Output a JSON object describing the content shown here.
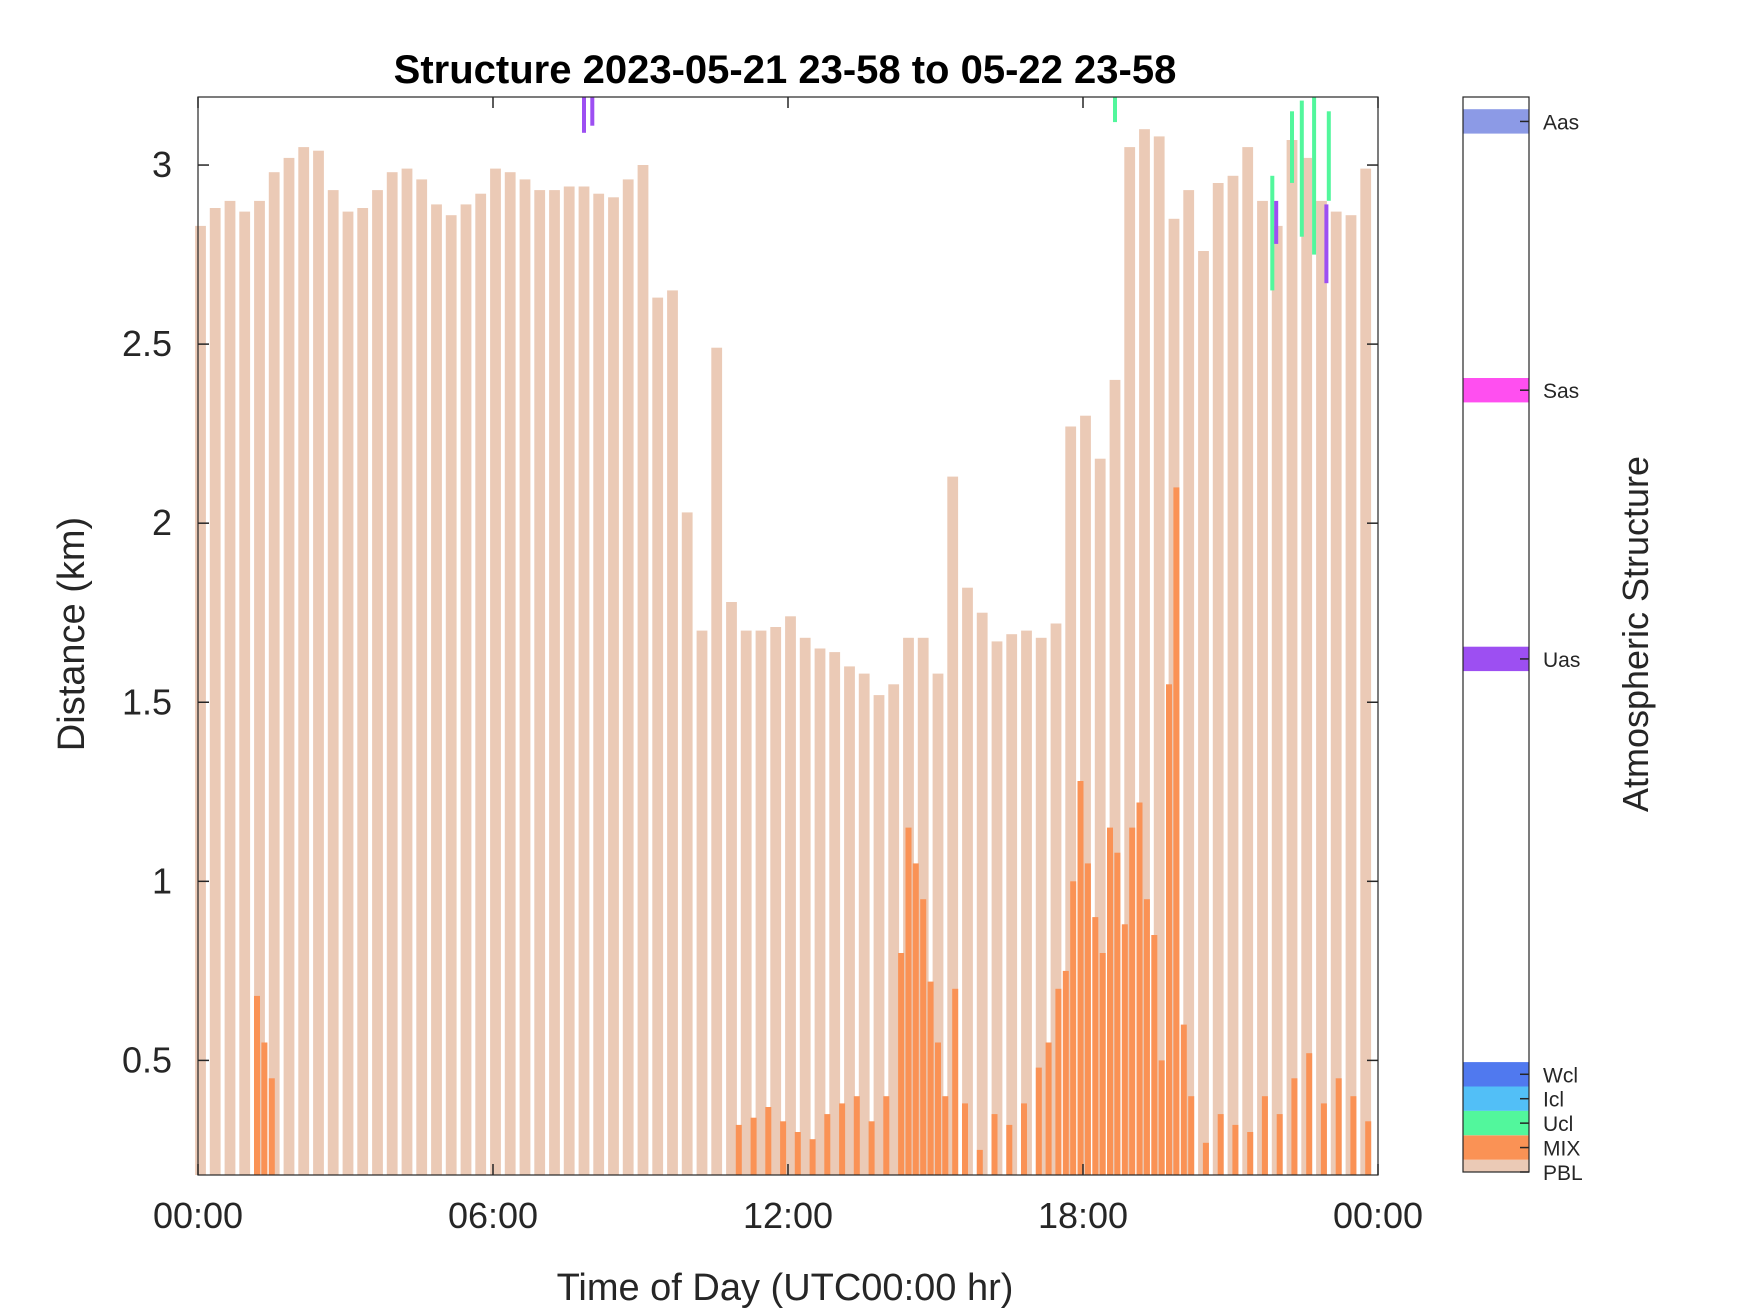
{
  "chart_data": {
    "type": "bar",
    "title": "Structure 2023-05-21 23-58 to 05-22 23-58",
    "xlabel": "Time of Day (UTC00:00 hr)",
    "ylabel": "Distance (km)",
    "xlim": [
      0,
      24
    ],
    "ylim": [
      0.18,
      3.19
    ],
    "x_ticks": [
      0,
      6,
      12,
      18,
      24
    ],
    "x_tick_labels": [
      "00:00",
      "06:00",
      "12:00",
      "18:00",
      "00:00"
    ],
    "y_ticks": [
      0.5,
      1,
      1.5,
      2,
      2.5,
      3
    ],
    "y_tick_labels": [
      "0.5",
      "1",
      "1.5",
      "2",
      "2.5",
      "3"
    ],
    "grid": false,
    "colorbar": {
      "title": "Atmospheric Structure",
      "classes": [
        {
          "label": "Aas",
          "color": "#8c9ae6"
        },
        {
          "label": "Sas",
          "color": "#ff4ff0"
        },
        {
          "label": "Uas",
          "color": "#9d4ff2"
        },
        {
          "label": "Wcl",
          "color": "#5079ef"
        },
        {
          "label": "Icl",
          "color": "#52bff7"
        },
        {
          "label": "Ucl",
          "color": "#52f79c"
        },
        {
          "label": "MIX",
          "color": "#fa9255"
        },
        {
          "label": "PBL",
          "color": "#ebcab6"
        }
      ]
    },
    "series": [
      {
        "name": "PBL",
        "color": "#ebcab6",
        "x": [
          0.05,
          0.35,
          0.65,
          0.95,
          1.25,
          1.55,
          1.85,
          2.15,
          2.45,
          2.75,
          3.05,
          3.35,
          3.65,
          3.95,
          4.25,
          4.55,
          4.85,
          5.15,
          5.45,
          5.75,
          6.05,
          6.35,
          6.65,
          6.95,
          7.25,
          7.55,
          7.85,
          8.15,
          8.45,
          8.75,
          9.05,
          9.35,
          9.65,
          9.95,
          10.25,
          10.55,
          10.85,
          11.15,
          11.45,
          11.75,
          12.05,
          12.35,
          12.65,
          12.95,
          13.25,
          13.55,
          13.85,
          14.15,
          14.45,
          14.75,
          15.05,
          15.35,
          15.65,
          15.95,
          16.25,
          16.55,
          16.85,
          17.15,
          17.45,
          17.75,
          18.05,
          18.35,
          18.65,
          18.95,
          19.25,
          19.55,
          19.85,
          20.15,
          20.45,
          20.75,
          21.05,
          21.35,
          21.65,
          21.95,
          22.25,
          22.55,
          22.85,
          23.15,
          23.45,
          23.75
        ],
        "values": [
          2.83,
          2.88,
          2.9,
          2.87,
          2.9,
          2.98,
          3.02,
          3.05,
          3.04,
          2.93,
          2.87,
          2.88,
          2.93,
          2.98,
          2.99,
          2.96,
          2.89,
          2.86,
          2.89,
          2.92,
          2.99,
          2.98,
          2.96,
          2.93,
          2.93,
          2.94,
          2.94,
          2.92,
          2.91,
          2.96,
          3.0,
          2.63,
          2.65,
          2.03,
          1.7,
          2.49,
          1.78,
          1.7,
          1.7,
          1.71,
          1.74,
          1.68,
          1.65,
          1.64,
          1.6,
          1.58,
          1.52,
          1.55,
          1.68,
          1.68,
          1.58,
          2.13,
          1.82,
          1.75,
          1.67,
          1.69,
          1.7,
          1.68,
          1.72,
          2.27,
          2.3,
          2.18,
          2.4,
          3.05,
          3.1,
          3.08,
          2.85,
          2.93,
          2.76,
          2.95,
          2.97,
          3.05,
          2.9,
          2.83,
          3.07,
          3.02,
          2.9,
          2.87,
          2.86,
          2.99
        ]
      },
      {
        "name": "MIX",
        "color": "#fa9255",
        "x": [
          1.2,
          1.35,
          1.5,
          11.0,
          11.3,
          11.6,
          11.9,
          12.2,
          12.5,
          12.8,
          13.1,
          13.4,
          13.7,
          14.0,
          14.3,
          14.45,
          14.6,
          14.75,
          14.9,
          15.05,
          15.2,
          15.4,
          15.6,
          15.9,
          16.2,
          16.5,
          16.8,
          17.1,
          17.3,
          17.5,
          17.65,
          17.8,
          17.95,
          18.1,
          18.25,
          18.4,
          18.55,
          18.7,
          18.85,
          19.0,
          19.15,
          19.3,
          19.45,
          19.6,
          19.75,
          19.9,
          20.05,
          20.2,
          20.5,
          20.8,
          21.1,
          21.4,
          21.7,
          22.0,
          22.3,
          22.6,
          22.9,
          23.2,
          23.5,
          23.8
        ],
        "values": [
          0.68,
          0.55,
          0.45,
          0.32,
          0.34,
          0.37,
          0.33,
          0.3,
          0.28,
          0.35,
          0.38,
          0.4,
          0.33,
          0.4,
          0.8,
          1.15,
          1.05,
          0.95,
          0.72,
          0.55,
          0.4,
          0.7,
          0.38,
          0.25,
          0.35,
          0.32,
          0.38,
          0.48,
          0.55,
          0.7,
          0.75,
          1.0,
          1.28,
          1.05,
          0.9,
          0.8,
          1.15,
          1.08,
          0.88,
          1.15,
          1.22,
          0.95,
          0.85,
          0.5,
          1.55,
          2.1,
          0.6,
          0.4,
          0.27,
          0.35,
          0.32,
          0.3,
          0.4,
          0.35,
          0.45,
          0.52,
          0.38,
          0.45,
          0.4,
          0.33
        ]
      },
      {
        "name": "Ucl",
        "color": "#52f79c",
        "segments": [
          {
            "x": 18.65,
            "y0": 3.12,
            "y1": 3.19
          },
          {
            "x": 21.85,
            "y0": 2.65,
            "y1": 2.97
          },
          {
            "x": 22.25,
            "y0": 2.95,
            "y1": 3.15
          },
          {
            "x": 22.45,
            "y0": 2.8,
            "y1": 3.18
          },
          {
            "x": 22.7,
            "y0": 2.75,
            "y1": 3.19
          },
          {
            "x": 23.0,
            "y0": 2.9,
            "y1": 3.15
          }
        ]
      },
      {
        "name": "Uas",
        "color": "#9d4ff2",
        "segments": [
          {
            "x": 7.85,
            "y0": 3.09,
            "y1": 3.19
          },
          {
            "x": 8.02,
            "y0": 3.11,
            "y1": 3.19
          },
          {
            "x": 21.93,
            "y0": 2.78,
            "y1": 2.9
          },
          {
            "x": 22.95,
            "y0": 2.67,
            "y1": 2.89
          }
        ]
      }
    ]
  }
}
